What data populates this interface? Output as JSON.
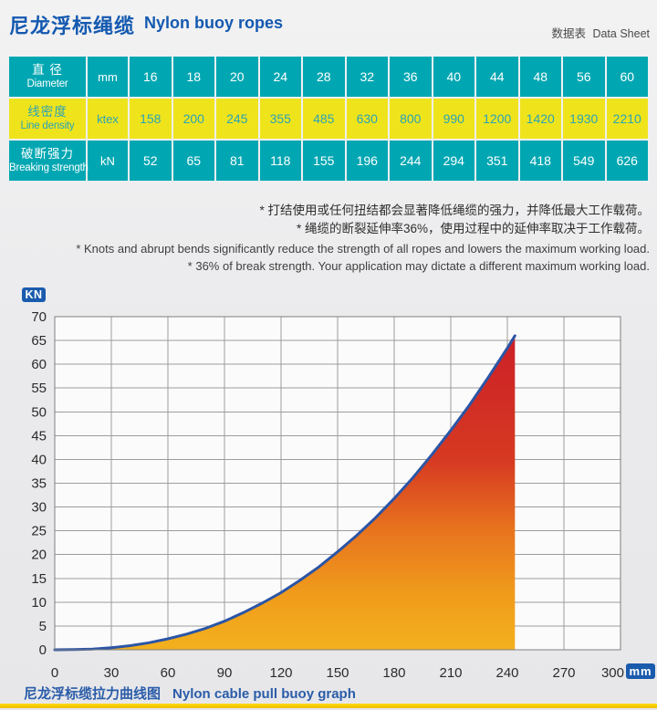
{
  "header": {
    "title_zh": "尼龙浮标绳缆",
    "title_en": "Nylon buoy ropes",
    "sheet_zh": "数据表",
    "sheet_en": "Data Sheet"
  },
  "table": {
    "rows": [
      {
        "style": "teal",
        "label_zh": "直 径",
        "label_en": "Diameter",
        "unit": "mm",
        "values": [
          "16",
          "18",
          "20",
          "24",
          "28",
          "32",
          "36",
          "40",
          "44",
          "48",
          "56",
          "60"
        ]
      },
      {
        "style": "yellow",
        "label_zh": "线密度",
        "label_en": "Line density",
        "unit": "ktex",
        "values": [
          "158",
          "200",
          "245",
          "355",
          "485",
          "630",
          "800",
          "990",
          "1200",
          "1420",
          "1930",
          "2210"
        ]
      },
      {
        "style": "teal",
        "label_zh": "破断强力",
        "label_en": "Breaking strength",
        "unit": "kN",
        "values": [
          "52",
          "65",
          "81",
          "118",
          "155",
          "196",
          "244",
          "294",
          "351",
          "418",
          "549",
          "626"
        ]
      }
    ]
  },
  "notes": {
    "zh1": "* 打结使用或任何扭结都会显著降低绳缆的强力，并降低最大工作载荷。",
    "zh2": "* 绳缆的断裂延伸率36%，使用过程中的延伸率取决于工作载荷。",
    "en1": "* Knots and abrupt bends significantly reduce the strength of all ropes and lowers the maximum working load.",
    "en2": "* 36% of break strength. Your application may dictate a different maximum working load."
  },
  "chart_data": {
    "type": "area",
    "title": "尼龙浮标缆拉力曲线图 Nylon cable pull buoy graph",
    "ylabel": "KN",
    "xlabel": "mm",
    "xlim": [
      0,
      300
    ],
    "ylim": [
      0,
      70
    ],
    "x_ticks": [
      0,
      30,
      60,
      90,
      120,
      150,
      180,
      210,
      240,
      270,
      300
    ],
    "y_ticks": [
      0,
      5,
      10,
      15,
      20,
      25,
      30,
      35,
      40,
      45,
      50,
      55,
      60,
      65,
      70
    ],
    "grid": true,
    "legend": "none",
    "series": [
      {
        "name": "pull-strength-curve",
        "points": [
          [
            0,
            0
          ],
          [
            10,
            0.03
          ],
          [
            20,
            0.16
          ],
          [
            30,
            0.43
          ],
          [
            40,
            0.86
          ],
          [
            50,
            1.47
          ],
          [
            60,
            2.3
          ],
          [
            70,
            3.3
          ],
          [
            80,
            4.5
          ],
          [
            90,
            6.0
          ],
          [
            100,
            7.8
          ],
          [
            110,
            9.8
          ],
          [
            120,
            12.0
          ],
          [
            130,
            14.6
          ],
          [
            140,
            17.4
          ],
          [
            150,
            20.6
          ],
          [
            160,
            24.0
          ],
          [
            170,
            27.7
          ],
          [
            180,
            31.8
          ],
          [
            190,
            36.2
          ],
          [
            200,
            41.0
          ],
          [
            210,
            46.1
          ],
          [
            220,
            51.5
          ],
          [
            230,
            57.3
          ],
          [
            240,
            63.4
          ],
          [
            244,
            66
          ]
        ]
      }
    ],
    "colors": {
      "line": "#2B55A5",
      "grid": "#9C9C9C",
      "plot_border": "#7F7F7F",
      "plot_bg": "#FBFBFC",
      "tick_text": "#2B2B2B",
      "fill_stops": [
        {
          "o": 0,
          "c": "#CC1F27"
        },
        {
          "o": 0.4,
          "c": "#D63A22"
        },
        {
          "o": 0.62,
          "c": "#E8741E"
        },
        {
          "o": 0.82,
          "c": "#F09B1C"
        },
        {
          "o": 1,
          "c": "#F3B11D"
        }
      ]
    }
  },
  "caption": {
    "zh": "尼龙浮标缆拉力曲线图",
    "en": "Nylon cable pull buoy graph"
  },
  "colors": {
    "accent_blue": "#1459B0",
    "badge_blue": "#1A5BAD",
    "table_teal": "#00A7B2",
    "table_yellow": "#EFE41C",
    "bottom_bar_yellow": "#FFD400"
  }
}
